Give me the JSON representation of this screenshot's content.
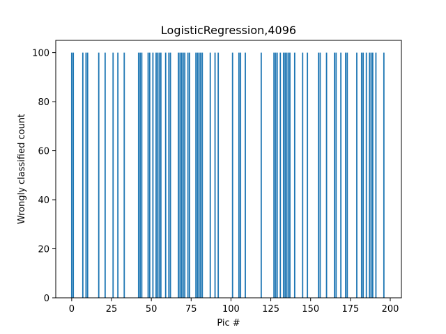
{
  "chart_data": {
    "type": "bar",
    "title": "LogisticRegression,4096",
    "xlabel": "Pic #",
    "ylabel": "Wrongly classified count",
    "xlim": [
      -10,
      207
    ],
    "ylim": [
      0,
      105
    ],
    "xticks": [
      0,
      25,
      50,
      75,
      100,
      125,
      150,
      175,
      200
    ],
    "yticks": [
      0,
      20,
      40,
      60,
      80,
      100
    ],
    "grid": false,
    "bar_color": "#1f77b4",
    "x": [
      0,
      1,
      7,
      9,
      10,
      17,
      21,
      26,
      29,
      33,
      42,
      43,
      44,
      48,
      49,
      51,
      53,
      54,
      55,
      56,
      59,
      61,
      62,
      67,
      68,
      69,
      70,
      71,
      73,
      74,
      78,
      79,
      80,
      81,
      82,
      87,
      90,
      92,
      101,
      105,
      106,
      109,
      119,
      127,
      128,
      129,
      131,
      133,
      134,
      135,
      136,
      137,
      140,
      145,
      148,
      155,
      156,
      160,
      165,
      166,
      169,
      172,
      173,
      179,
      182,
      183,
      185,
      187,
      188,
      189,
      191,
      196
    ],
    "values": [
      100,
      100,
      100,
      100,
      100,
      100,
      100,
      100,
      100,
      100,
      100,
      100,
      100,
      100,
      100,
      100,
      100,
      100,
      100,
      100,
      100,
      100,
      100,
      100,
      100,
      100,
      100,
      100,
      100,
      100,
      100,
      100,
      100,
      100,
      100,
      100,
      100,
      100,
      100,
      100,
      100,
      100,
      100,
      100,
      100,
      100,
      100,
      100,
      100,
      100,
      100,
      100,
      100,
      100,
      100,
      100,
      100,
      100,
      100,
      100,
      100,
      100,
      100,
      100,
      100,
      100,
      100,
      100,
      100,
      100,
      100,
      100
    ]
  }
}
